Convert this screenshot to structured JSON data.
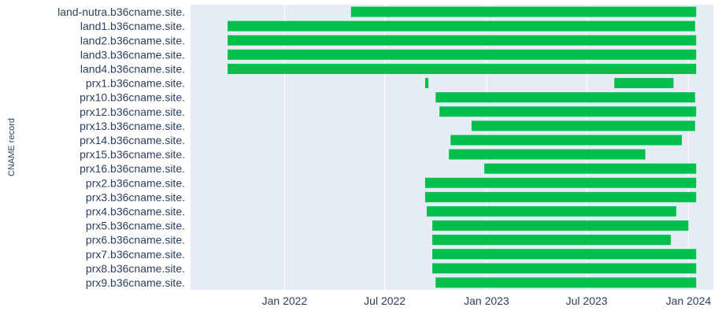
{
  "chart_data": {
    "type": "timeline",
    "title": "",
    "xlabel": "",
    "ylabel": "CNAME record",
    "x_axis": {
      "type": "date",
      "range": [
        "2021-07-15",
        "2024-02-15"
      ],
      "ticks": [
        {
          "date": "2022-01-01",
          "label": "Jan 2022"
        },
        {
          "date": "2022-07-01",
          "label": "Jul 2022"
        },
        {
          "date": "2023-01-01",
          "label": "Jan 2023"
        },
        {
          "date": "2023-07-01",
          "label": "Jul 2023"
        },
        {
          "date": "2024-01-01",
          "label": "Jan 2024"
        }
      ]
    },
    "grid": true,
    "bar_color": "#00c04b",
    "plot_background": "#e5ecf6",
    "records": [
      {
        "name": "land-nutra.b36cname.site.",
        "intervals": [
          [
            "2022-05-01",
            "2024-01-15"
          ]
        ]
      },
      {
        "name": "land1.b36cname.site.",
        "intervals": [
          [
            "2021-09-20",
            "2024-01-13"
          ]
        ]
      },
      {
        "name": "land2.b36cname.site.",
        "intervals": [
          [
            "2021-09-20",
            "2024-01-15"
          ]
        ]
      },
      {
        "name": "land3.b36cname.site.",
        "intervals": [
          [
            "2021-09-20",
            "2024-01-15"
          ]
        ]
      },
      {
        "name": "land4.b36cname.site.",
        "intervals": [
          [
            "2021-09-20",
            "2024-01-15"
          ]
        ]
      },
      {
        "name": "prx1.b36cname.site.",
        "intervals": [
          [
            "2022-09-12",
            "2022-09-18"
          ],
          [
            "2023-08-20",
            "2023-12-05"
          ]
        ]
      },
      {
        "name": "prx10.b36cname.site.",
        "intervals": [
          [
            "2022-10-01",
            "2024-01-13"
          ]
        ]
      },
      {
        "name": "prx12.b36cname.site.",
        "intervals": [
          [
            "2022-10-08",
            "2024-01-15"
          ]
        ]
      },
      {
        "name": "prx13.b36cname.site.",
        "intervals": [
          [
            "2022-12-05",
            "2024-01-13"
          ]
        ]
      },
      {
        "name": "prx14.b36cname.site.",
        "intervals": [
          [
            "2022-10-28",
            "2023-12-20"
          ]
        ]
      },
      {
        "name": "prx15.b36cname.site.",
        "intervals": [
          [
            "2022-10-25",
            "2023-10-15"
          ]
        ]
      },
      {
        "name": "prx16.b36cname.site.",
        "intervals": [
          [
            "2022-12-28",
            "2024-01-15"
          ]
        ]
      },
      {
        "name": "prx2.b36cname.site.",
        "intervals": [
          [
            "2022-09-12",
            "2024-01-15"
          ]
        ]
      },
      {
        "name": "prx3.b36cname.site.",
        "intervals": [
          [
            "2022-09-12",
            "2024-01-15"
          ]
        ]
      },
      {
        "name": "prx4.b36cname.site.",
        "intervals": [
          [
            "2022-09-15",
            "2023-12-10"
          ]
        ]
      },
      {
        "name": "prx5.b36cname.site.",
        "intervals": [
          [
            "2022-09-25",
            "2024-01-01"
          ]
        ]
      },
      {
        "name": "prx6.b36cname.site.",
        "intervals": [
          [
            "2022-09-25",
            "2023-11-30"
          ]
        ]
      },
      {
        "name": "prx7.b36cname.site.",
        "intervals": [
          [
            "2022-09-25",
            "2024-01-15"
          ]
        ]
      },
      {
        "name": "prx8.b36cname.site.",
        "intervals": [
          [
            "2022-09-25",
            "2024-01-15"
          ]
        ]
      },
      {
        "name": "prx9.b36cname.site.",
        "intervals": [
          [
            "2022-10-01",
            "2024-01-15"
          ]
        ]
      }
    ]
  }
}
